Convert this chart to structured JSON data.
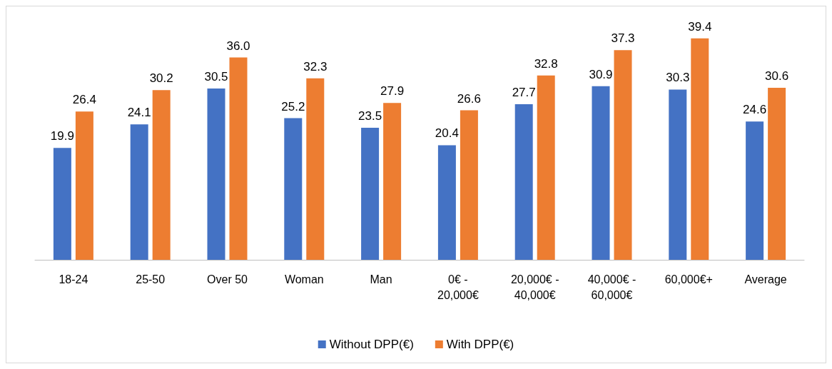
{
  "chart_data": {
    "type": "bar",
    "categories": [
      "18-24",
      "25-50",
      "Over 50",
      "Woman",
      "Man",
      "0€ - 20,000€",
      "20,000€ - 40,000€",
      "40,000€ - 60,000€",
      "60,000€+",
      "Average"
    ],
    "series": [
      {
        "name": "Without DPP(€)",
        "color": "#4472c4",
        "values": [
          19.9,
          24.1,
          30.5,
          25.2,
          23.5,
          20.4,
          27.7,
          30.9,
          30.3,
          24.6
        ],
        "value_labels": [
          "19.9",
          "24.1",
          "30.5",
          "25.2",
          "23.5",
          "20.4",
          "27.7",
          "30.9",
          "30.3",
          "24.6"
        ]
      },
      {
        "name": "With DPP(€)",
        "color": "#ed7d31",
        "values": [
          26.4,
          30.2,
          36.0,
          32.3,
          27.9,
          26.6,
          32.8,
          37.3,
          39.4,
          30.6
        ],
        "value_labels": [
          "26.4",
          "30.2",
          "36.0",
          "32.3",
          "27.9",
          "26.6",
          "32.8",
          "37.3",
          "39.4",
          "30.6"
        ]
      }
    ],
    "legend": "bottom"
  }
}
